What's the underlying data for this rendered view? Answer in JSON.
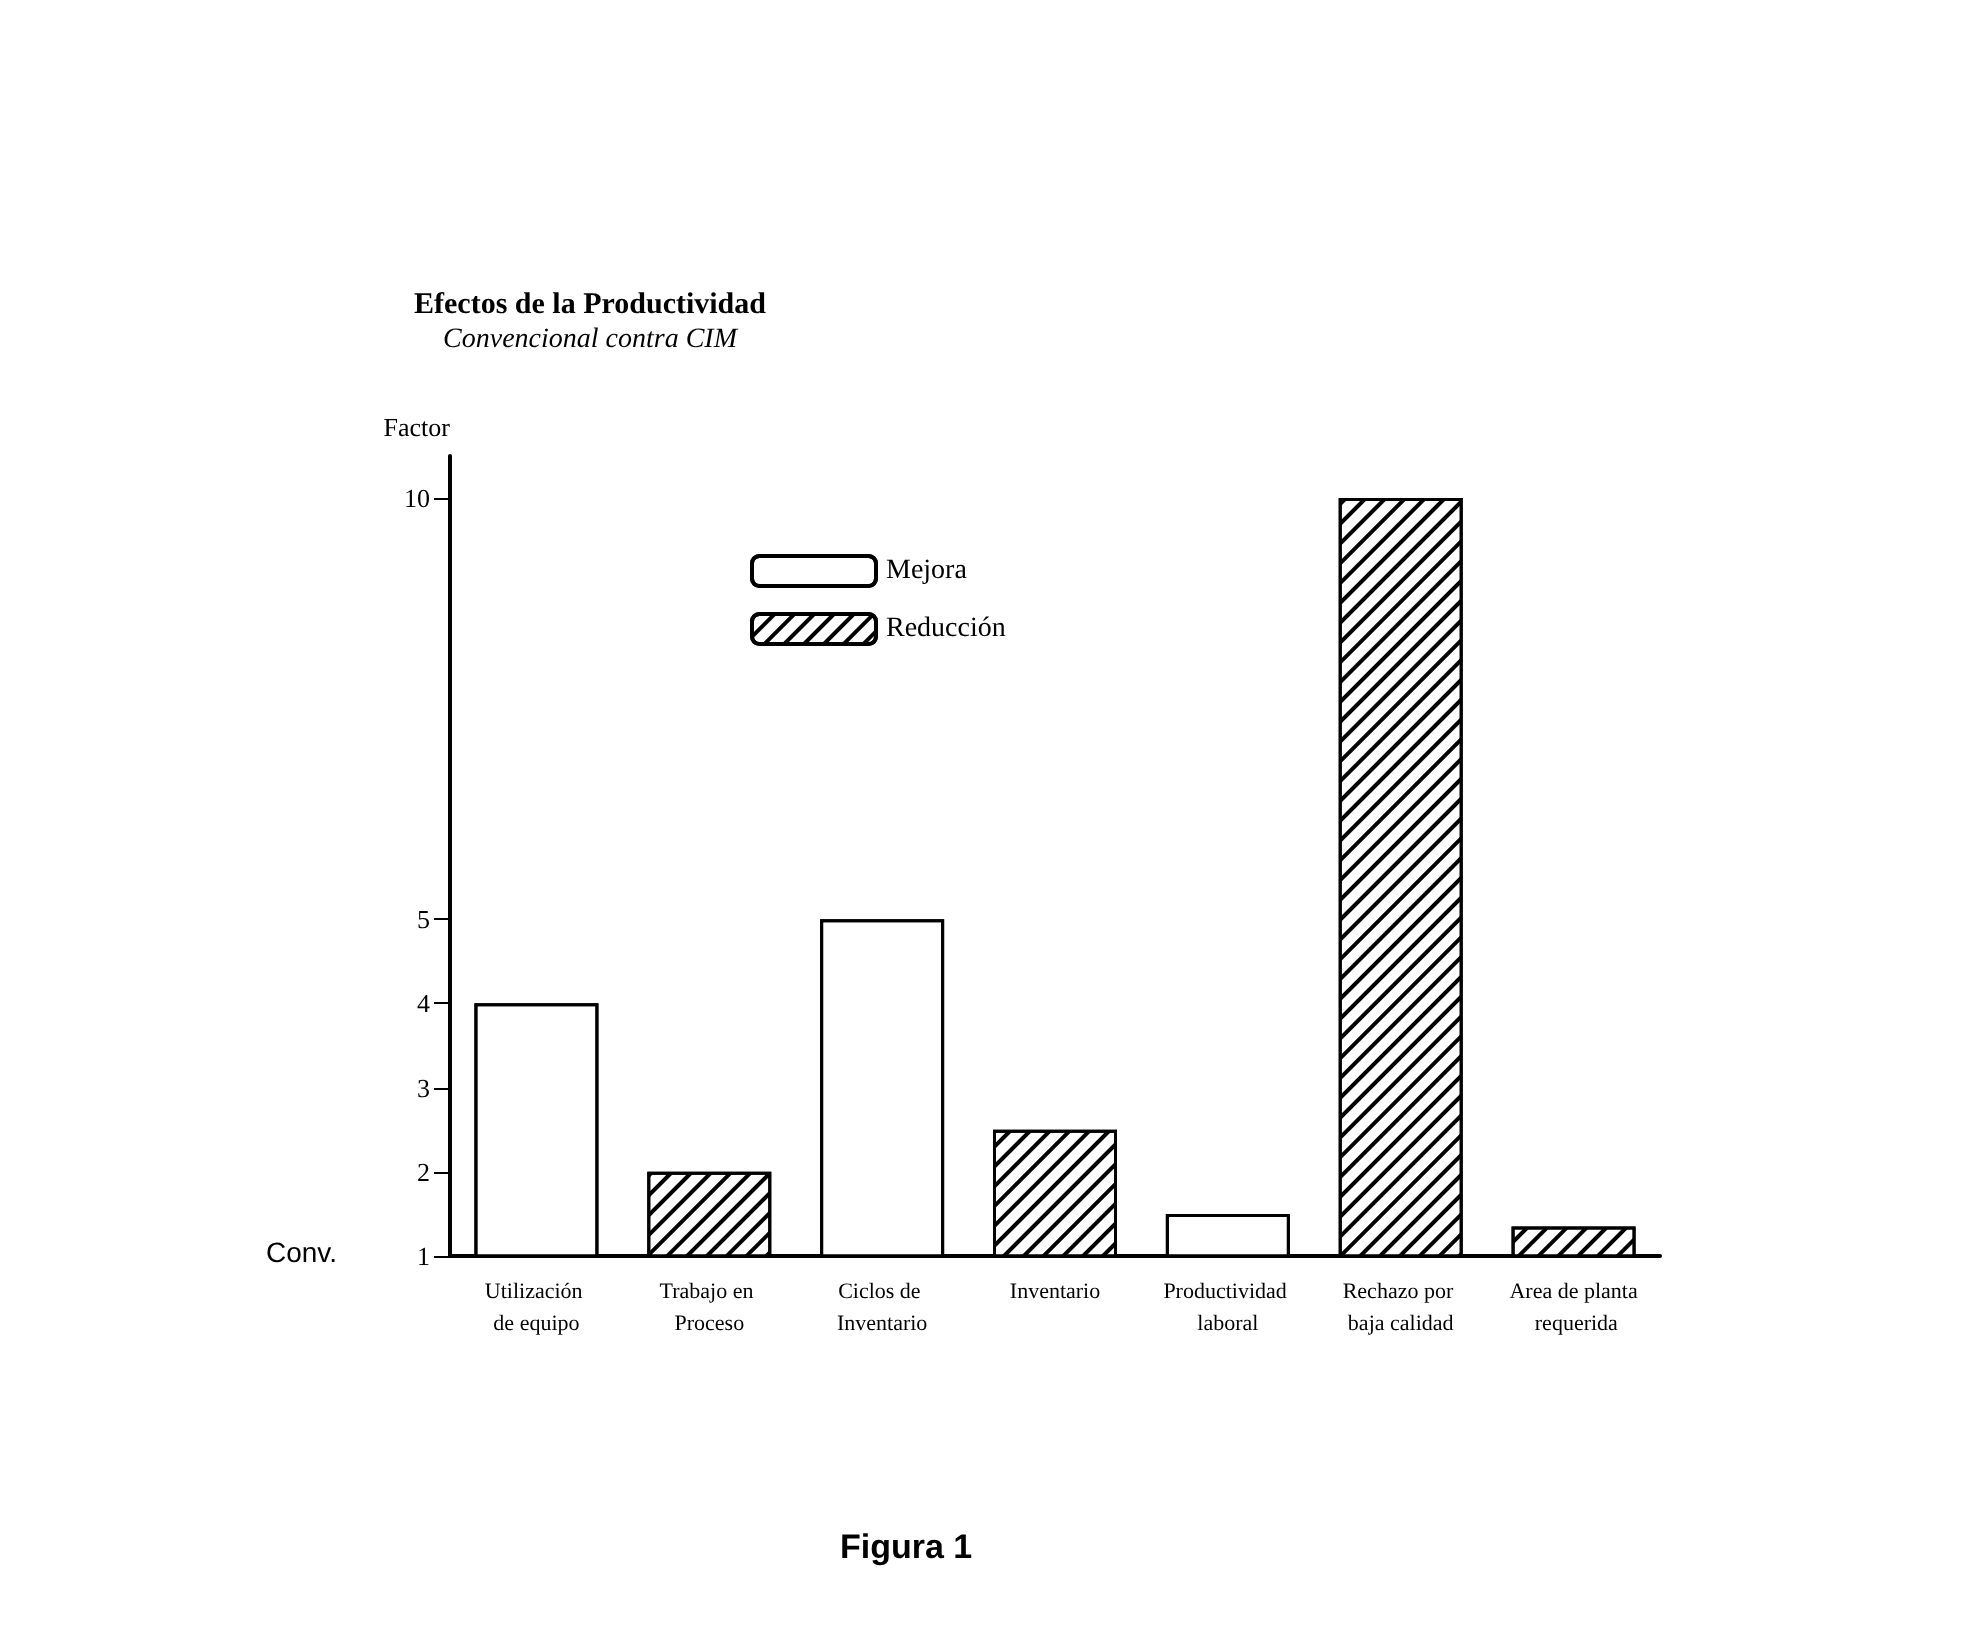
{
  "chart_data": {
    "type": "bar",
    "title": "Efectos de la Productividad",
    "subtitle": "Convencional contra CIM",
    "ylabel": "Factor",
    "categories": [
      "Utilización de equipo",
      "Trabajo en Proceso",
      "Ciclos de Inventario",
      "Inventario",
      "Productividad laboral",
      "Rechazo por baja calidad",
      "Area de planta requerida"
    ],
    "series": [
      {
        "name": "Mejora",
        "color": "#ffffff",
        "values": [
          4,
          null,
          5,
          null,
          1.5,
          null,
          null
        ]
      },
      {
        "name": "Reducción",
        "color": "#000000",
        "values": [
          null,
          2,
          null,
          2.5,
          null,
          10,
          1.35
        ]
      }
    ],
    "ylim": [
      1,
      10.5
    ],
    "yticks": [
      1,
      2,
      3,
      4,
      5,
      10
    ],
    "grid": false,
    "legend": "top",
    "annotations": [
      "Conv.",
      "Figura 1"
    ]
  }
}
